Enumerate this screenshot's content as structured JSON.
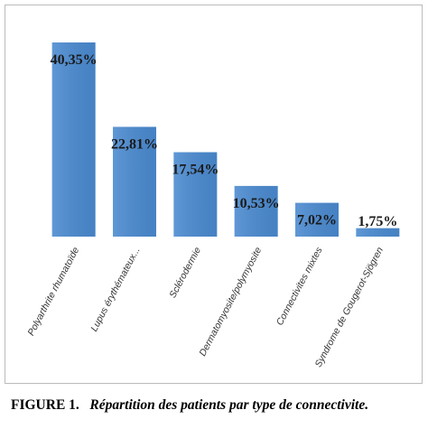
{
  "chart_data": {
    "type": "bar",
    "categories": [
      "Polyarthrite rhumatoïde",
      "Lupus érythémateux...",
      "Sclérodermie",
      "Dermatomyosite/polymyosite",
      "Connectivites mixtes",
      "Syndrome de Gougerot-Sjögren"
    ],
    "values": [
      40.35,
      22.81,
      17.54,
      10.53,
      7.02,
      1.75
    ],
    "value_labels": [
      "40,35%",
      "22,81%",
      "17,54%",
      "10,53%",
      "7,02%",
      "1,75%"
    ],
    "color": "#4a8ad0"
  },
  "caption": {
    "label": "FIGURE 1.",
    "text": "Répartition des patients par type de connectivite."
  }
}
